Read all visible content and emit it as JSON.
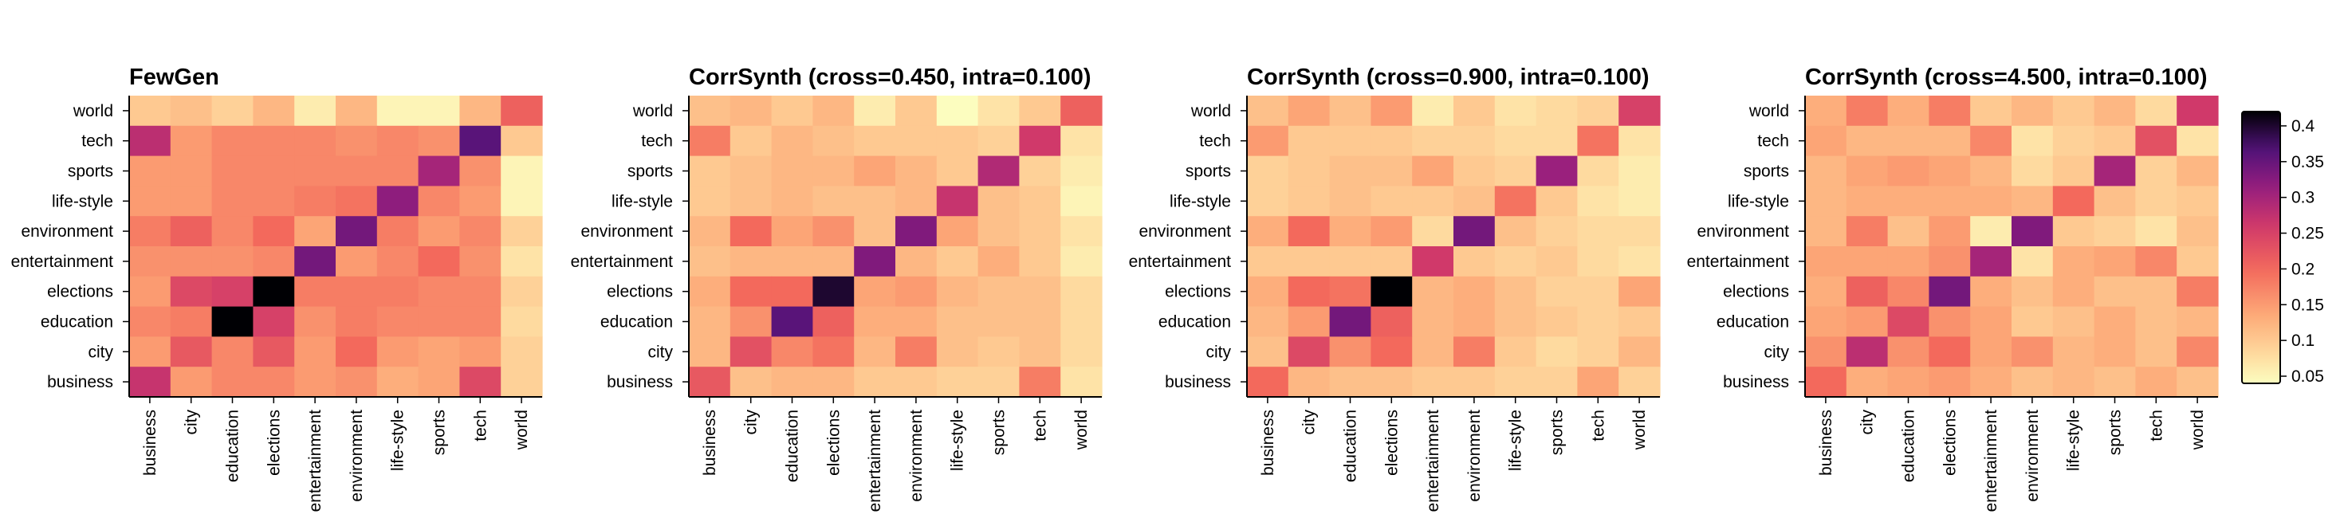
{
  "chart_data": [
    {
      "type": "heatmap",
      "title": "FewGen",
      "x_categories": [
        "business",
        "city",
        "education",
        "elections",
        "entertainment",
        "environment",
        "life-style",
        "sports",
        "tech",
        "world"
      ],
      "y_categories_top_to_bottom": [
        "world",
        "tech",
        "sports",
        "life-style",
        "environment",
        "entertainment",
        "elections",
        "education",
        "city",
        "business"
      ],
      "values": [
        [
          0.1,
          0.11,
          0.09,
          0.12,
          0.06,
          0.12,
          0.05,
          0.05,
          0.12,
          0.21
        ],
        [
          0.28,
          0.15,
          0.17,
          0.17,
          0.17,
          0.16,
          0.17,
          0.16,
          0.36,
          0.1
        ],
        [
          0.15,
          0.15,
          0.17,
          0.17,
          0.17,
          0.17,
          0.17,
          0.3,
          0.16,
          0.05
        ],
        [
          0.15,
          0.15,
          0.17,
          0.17,
          0.18,
          0.19,
          0.32,
          0.17,
          0.15,
          0.05
        ],
        [
          0.18,
          0.21,
          0.17,
          0.2,
          0.14,
          0.34,
          0.18,
          0.15,
          0.17,
          0.09
        ],
        [
          0.16,
          0.16,
          0.16,
          0.17,
          0.34,
          0.15,
          0.17,
          0.2,
          0.16,
          0.07
        ],
        [
          0.15,
          0.24,
          0.25,
          0.42,
          0.18,
          0.18,
          0.18,
          0.17,
          0.17,
          0.09
        ],
        [
          0.17,
          0.18,
          0.42,
          0.25,
          0.16,
          0.18,
          0.17,
          0.17,
          0.17,
          0.08
        ],
        [
          0.15,
          0.22,
          0.17,
          0.22,
          0.15,
          0.2,
          0.15,
          0.14,
          0.15,
          0.09
        ],
        [
          0.27,
          0.15,
          0.17,
          0.17,
          0.15,
          0.16,
          0.13,
          0.14,
          0.24,
          0.09
        ]
      ],
      "colorbar": {
        "min": 0.04,
        "max": 0.42,
        "ticks": [
          0.05,
          0.1,
          0.15,
          0.2,
          0.25,
          0.3,
          0.35,
          0.4
        ]
      }
    },
    {
      "type": "heatmap",
      "title": "CorrSynth (cross=0.450, intra=0.100)",
      "x_categories": [
        "business",
        "city",
        "education",
        "elections",
        "entertainment",
        "environment",
        "life-style",
        "sports",
        "tech",
        "world"
      ],
      "y_categories_top_to_bottom": [
        "world",
        "tech",
        "sports",
        "life-style",
        "environment",
        "entertainment",
        "elections",
        "education",
        "city",
        "business"
      ],
      "values": [
        [
          0.11,
          0.12,
          0.1,
          0.12,
          0.06,
          0.1,
          0.04,
          0.07,
          0.1,
          0.21
        ],
        [
          0.18,
          0.1,
          0.12,
          0.11,
          0.1,
          0.1,
          0.1,
          0.09,
          0.26,
          0.07
        ],
        [
          0.1,
          0.11,
          0.12,
          0.12,
          0.14,
          0.12,
          0.1,
          0.29,
          0.09,
          0.06
        ],
        [
          0.1,
          0.11,
          0.12,
          0.11,
          0.11,
          0.12,
          0.27,
          0.11,
          0.1,
          0.05
        ],
        [
          0.12,
          0.2,
          0.14,
          0.16,
          0.11,
          0.33,
          0.14,
          0.11,
          0.1,
          0.07
        ],
        [
          0.11,
          0.12,
          0.12,
          0.12,
          0.33,
          0.12,
          0.1,
          0.13,
          0.1,
          0.06
        ],
        [
          0.13,
          0.2,
          0.2,
          0.4,
          0.14,
          0.15,
          0.12,
          0.11,
          0.11,
          0.08
        ],
        [
          0.12,
          0.16,
          0.36,
          0.21,
          0.13,
          0.13,
          0.11,
          0.11,
          0.11,
          0.08
        ],
        [
          0.12,
          0.23,
          0.17,
          0.19,
          0.12,
          0.18,
          0.11,
          0.1,
          0.11,
          0.08
        ],
        [
          0.22,
          0.11,
          0.12,
          0.12,
          0.1,
          0.1,
          0.09,
          0.09,
          0.18,
          0.07
        ]
      ],
      "colorbar": {
        "min": 0.04,
        "max": 0.42,
        "ticks": [
          0.05,
          0.1,
          0.15,
          0.2,
          0.25,
          0.3,
          0.35,
          0.4
        ]
      }
    },
    {
      "type": "heatmap",
      "title": "CorrSynth (cross=0.900, intra=0.100)",
      "x_categories": [
        "business",
        "city",
        "education",
        "elections",
        "entertainment",
        "environment",
        "life-style",
        "sports",
        "tech",
        "world"
      ],
      "y_categories_top_to_bottom": [
        "world",
        "tech",
        "sports",
        "life-style",
        "environment",
        "entertainment",
        "elections",
        "education",
        "city",
        "business"
      ],
      "values": [
        [
          0.11,
          0.14,
          0.11,
          0.15,
          0.06,
          0.1,
          0.07,
          0.08,
          0.09,
          0.25
        ],
        [
          0.15,
          0.1,
          0.1,
          0.1,
          0.09,
          0.09,
          0.08,
          0.08,
          0.19,
          0.07
        ],
        [
          0.09,
          0.1,
          0.11,
          0.11,
          0.14,
          0.1,
          0.09,
          0.31,
          0.08,
          0.06
        ],
        [
          0.09,
          0.1,
          0.11,
          0.1,
          0.1,
          0.11,
          0.19,
          0.1,
          0.07,
          0.06
        ],
        [
          0.13,
          0.2,
          0.13,
          0.15,
          0.08,
          0.34,
          0.11,
          0.09,
          0.08,
          0.08
        ],
        [
          0.1,
          0.1,
          0.1,
          0.1,
          0.26,
          0.1,
          0.09,
          0.1,
          0.08,
          0.07
        ],
        [
          0.13,
          0.2,
          0.19,
          0.42,
          0.12,
          0.13,
          0.11,
          0.09,
          0.09,
          0.14
        ],
        [
          0.12,
          0.15,
          0.34,
          0.21,
          0.12,
          0.13,
          0.11,
          0.1,
          0.09,
          0.1
        ],
        [
          0.11,
          0.24,
          0.16,
          0.2,
          0.12,
          0.18,
          0.1,
          0.08,
          0.09,
          0.12
        ],
        [
          0.2,
          0.12,
          0.11,
          0.11,
          0.1,
          0.1,
          0.09,
          0.09,
          0.14,
          0.09
        ]
      ],
      "colorbar": {
        "min": 0.04,
        "max": 0.42,
        "ticks": [
          0.05,
          0.1,
          0.15,
          0.2,
          0.25,
          0.3,
          0.35,
          0.4
        ]
      }
    },
    {
      "type": "heatmap",
      "title": "CorrSynth (cross=4.500, intra=0.100)",
      "x_categories": [
        "business",
        "city",
        "education",
        "elections",
        "entertainment",
        "environment",
        "life-style",
        "sports",
        "tech",
        "world"
      ],
      "y_categories_top_to_bottom": [
        "world",
        "tech",
        "sports",
        "life-style",
        "environment",
        "entertainment",
        "elections",
        "education",
        "city",
        "business"
      ],
      "values": [
        [
          0.13,
          0.18,
          0.13,
          0.18,
          0.1,
          0.12,
          0.1,
          0.12,
          0.08,
          0.26
        ],
        [
          0.14,
          0.12,
          0.12,
          0.12,
          0.17,
          0.07,
          0.09,
          0.1,
          0.23,
          0.07
        ],
        [
          0.12,
          0.14,
          0.15,
          0.14,
          0.12,
          0.08,
          0.1,
          0.3,
          0.09,
          0.12
        ],
        [
          0.12,
          0.13,
          0.13,
          0.13,
          0.13,
          0.12,
          0.2,
          0.11,
          0.09,
          0.1
        ],
        [
          0.12,
          0.18,
          0.11,
          0.15,
          0.06,
          0.33,
          0.1,
          0.09,
          0.07,
          0.11
        ],
        [
          0.14,
          0.14,
          0.14,
          0.16,
          0.3,
          0.07,
          0.13,
          0.14,
          0.17,
          0.1
        ],
        [
          0.13,
          0.21,
          0.17,
          0.34,
          0.13,
          0.11,
          0.13,
          0.11,
          0.11,
          0.18
        ],
        [
          0.14,
          0.15,
          0.24,
          0.16,
          0.14,
          0.1,
          0.11,
          0.13,
          0.11,
          0.12
        ],
        [
          0.16,
          0.28,
          0.16,
          0.2,
          0.14,
          0.16,
          0.12,
          0.13,
          0.11,
          0.17
        ],
        [
          0.2,
          0.13,
          0.14,
          0.15,
          0.13,
          0.11,
          0.12,
          0.11,
          0.13,
          0.11
        ]
      ],
      "colorbar": {
        "min": 0.04,
        "max": 0.42,
        "ticks": [
          0.05,
          0.1,
          0.15,
          0.2,
          0.25,
          0.3,
          0.35,
          0.4
        ]
      }
    }
  ]
}
